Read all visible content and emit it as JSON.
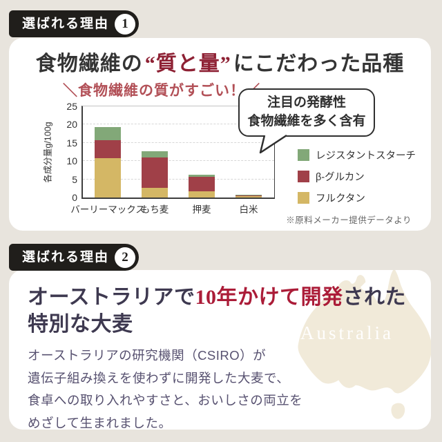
{
  "colors": {
    "background": "#e8e4dd",
    "card": "#ffffff",
    "badge_bg": "#201e1b",
    "heading1_red": "#8e2134",
    "heading2_red": "#ab1c38",
    "chart_title_red": "#b25057",
    "text_dark": "#343434",
    "text_body": "#575170",
    "map_fill": "#f1ead9"
  },
  "section1": {
    "badge": {
      "label": "選ばれる理由",
      "number": "1"
    },
    "heading": {
      "pre": "食物繊維の",
      "highlight": "“質と量”",
      "post": "にこだわった品種"
    },
    "bubble": {
      "line1": "注目の発酵性",
      "line2": "食物繊維を多く含有"
    },
    "source_note": "※原料メーカー提供データより"
  },
  "chart_data": {
    "type": "bar",
    "stacked": true,
    "title": "＼食物繊維の質がすごい！／",
    "ylabel": "各成分量g/100g",
    "unit": "g/100g",
    "ylim": [
      0,
      25
    ],
    "ytick_step": 5,
    "grid": "horizontal-dashed",
    "legend_position": "right",
    "categories": [
      "バーリーマックス",
      "もち麦",
      "押麦",
      "白米"
    ],
    "series": [
      {
        "name": "フルクタン",
        "color": "#d4b765",
        "values": [
          10.8,
          2.6,
          1.7,
          0.5
        ]
      },
      {
        "name": "β-グルカン",
        "color": "#a04048",
        "values": [
          4.9,
          8.4,
          3.9,
          0.1
        ]
      },
      {
        "name": "レジスタントスターチ",
        "color": "#82a878",
        "values": [
          3.6,
          1.6,
          0.7,
          0.1
        ]
      }
    ],
    "stack_order": "bottom-to-top",
    "legend_order_top_to_bottom": [
      "レジスタントスターチ",
      "β-グルカン",
      "フルクタン"
    ],
    "source_note": "※原料メーカー提供データより"
  },
  "section2": {
    "badge": {
      "label": "選ばれる理由",
      "number": "2"
    },
    "heading": {
      "line1_pre": "オーストラリアで",
      "line1_highlight": "10年かけて開発",
      "line1_post": "された",
      "line2": "特別な大麦"
    },
    "body_lines": [
      "オーストラリアの研究機関（CSIRO）が",
      "遺伝子組み換えを使わずに開発した大麦で、",
      "食卓への取り入れやすさと、おいしさの両立を",
      "めざして生まれました。"
    ],
    "map_label": "Australia"
  }
}
